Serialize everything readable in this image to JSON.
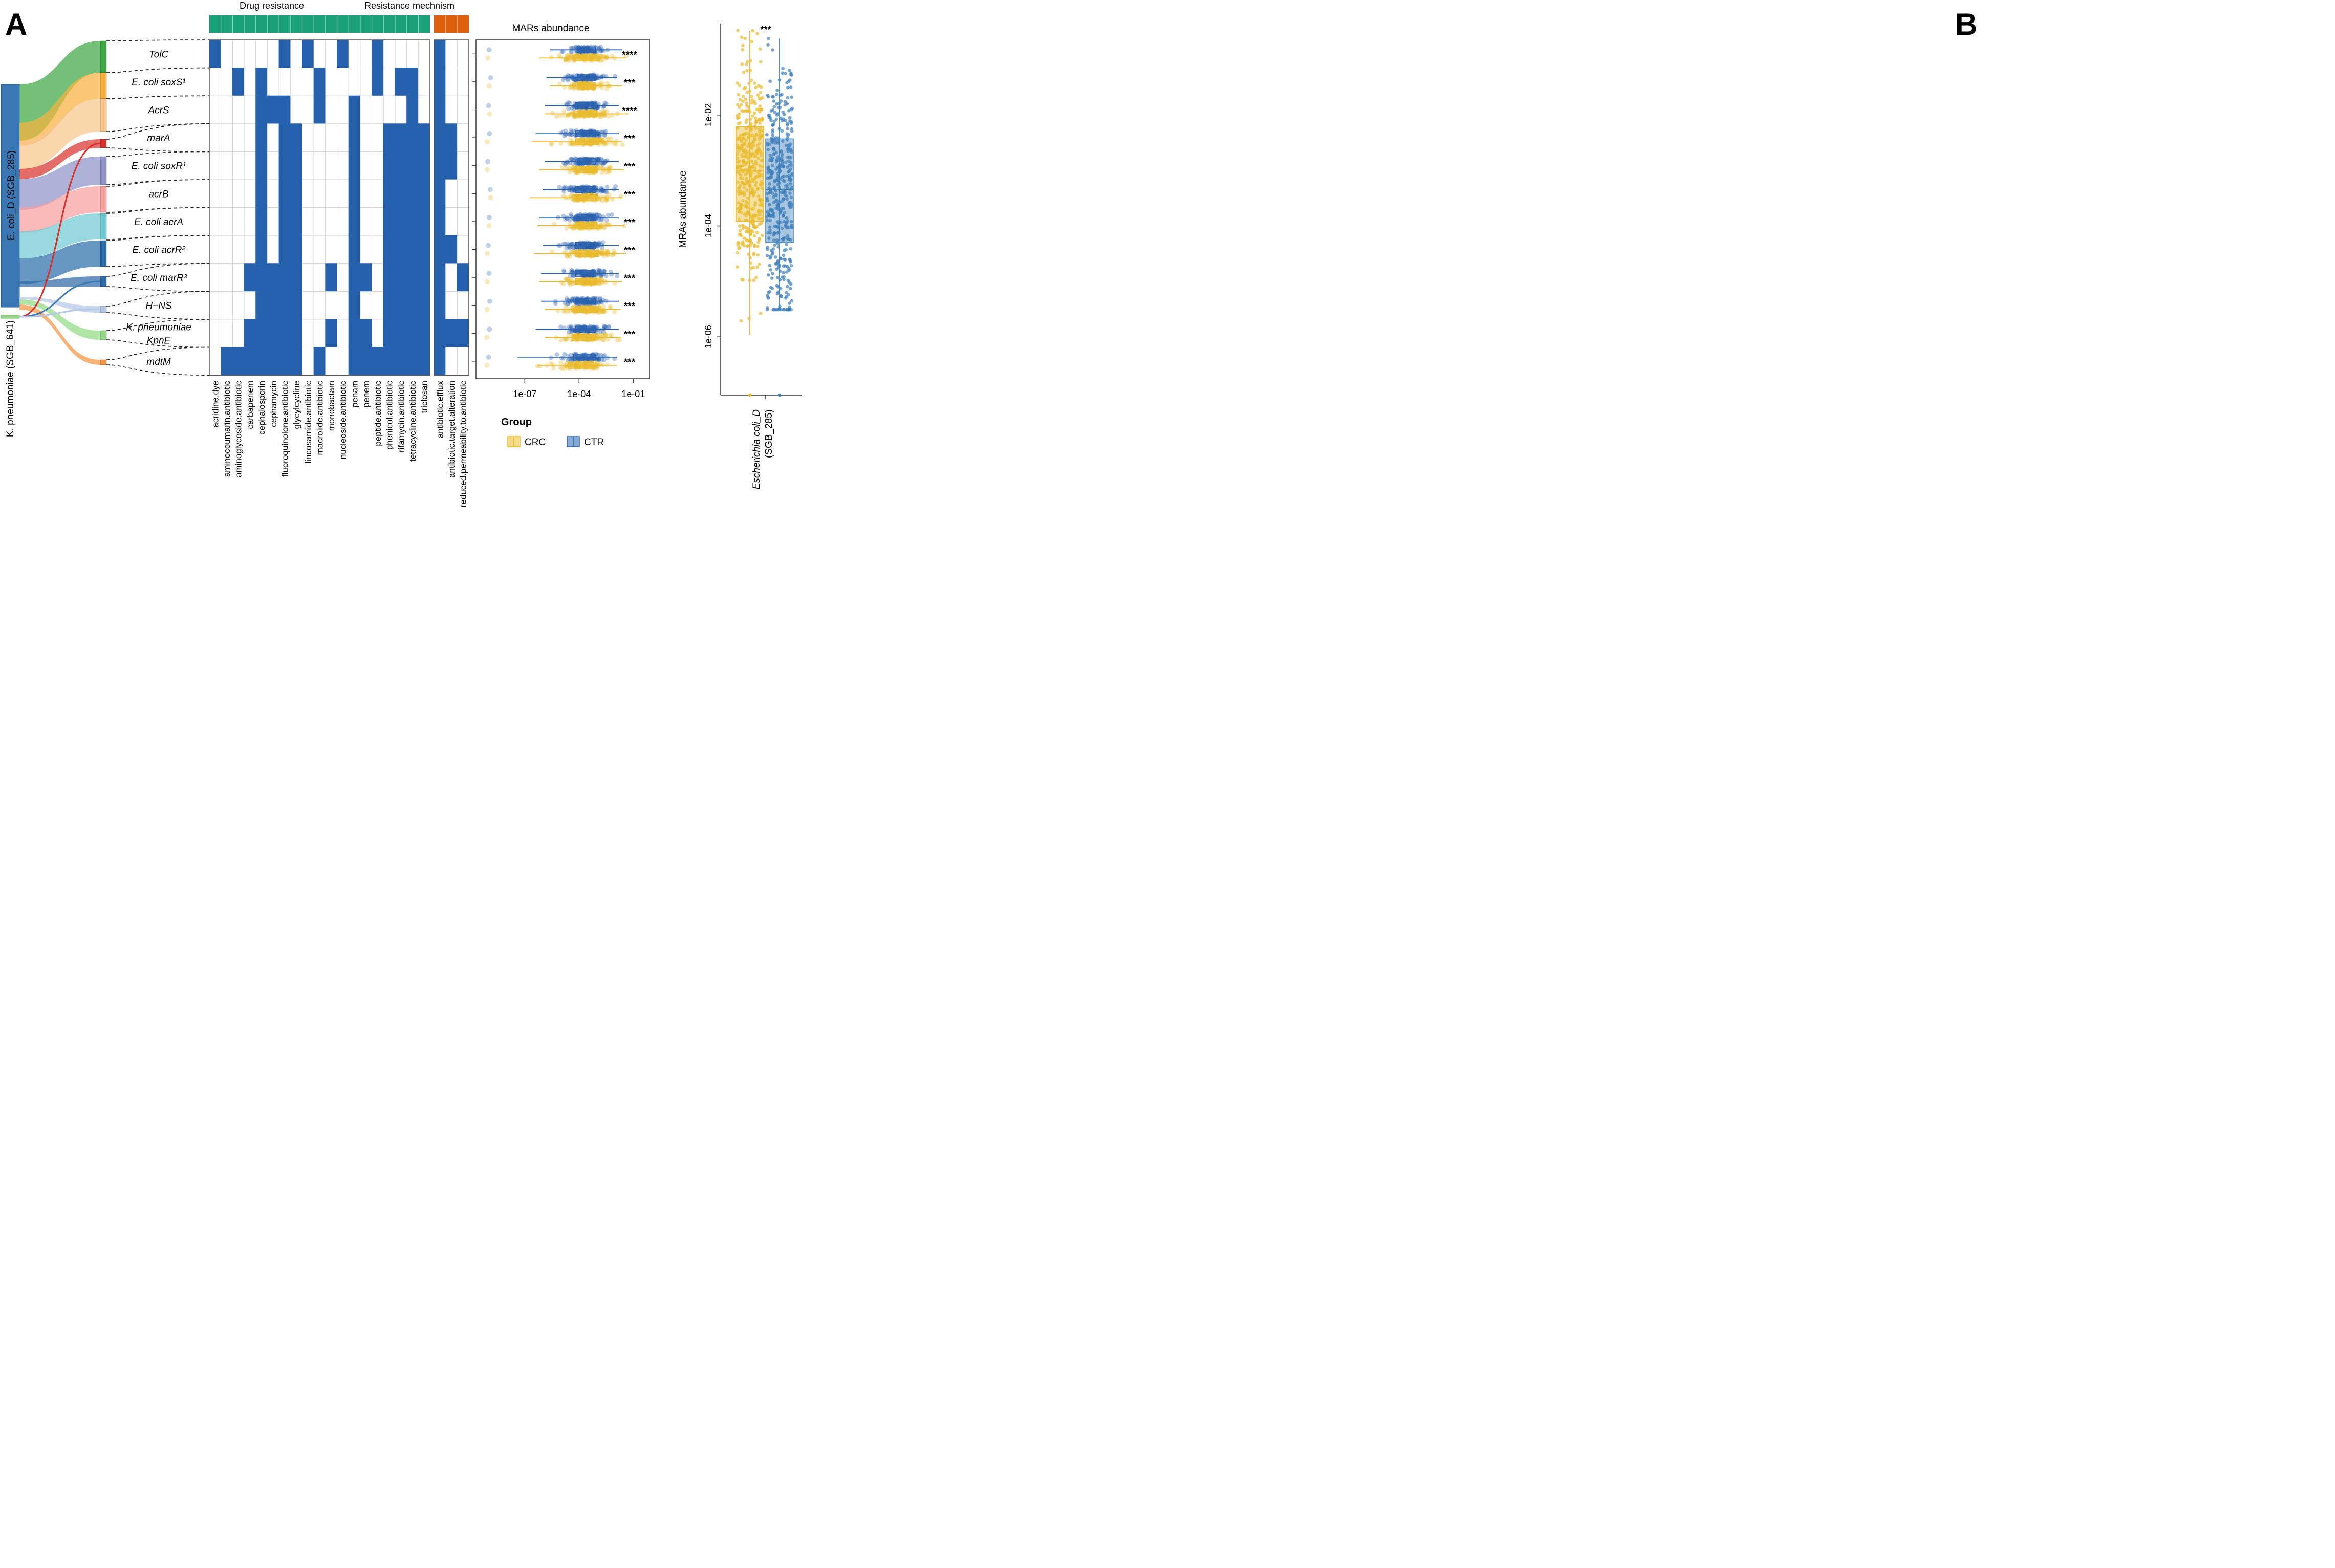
{
  "panel_labels": {
    "a": "A",
    "b": "B"
  },
  "colors": {
    "heat_fill": "#2560AC",
    "drug_bar": "#1AA179",
    "mech_bar": "#DE5F0C",
    "crc": "#E9BA2C",
    "ctr": "#2A62AE",
    "ctr_b": "#3F7FBA"
  },
  "species": {
    "ecoli": "E. coli_D (SGB_285)",
    "kpneu": "K. pneumoniae (SGB_641)"
  },
  "header": {
    "drug": "Drug resistance",
    "mech": "Resistance mechnism"
  },
  "genes": [
    {
      "label": "TolC",
      "color": "#3EA844"
    },
    {
      "label": "E. coli soxS¹",
      "color": "#F7B23E"
    },
    {
      "label": "AcrS",
      "color": "#F8C68D"
    },
    {
      "label": "marA",
      "color": "#D8322E"
    },
    {
      "label": "E. coli soxR¹",
      "color": "#8F93C8"
    },
    {
      "label": "acrB",
      "color": "#F6A0A0"
    },
    {
      "label": "E. coli acrA",
      "color": "#6FCBD2"
    },
    {
      "label": "E. coli acrR²",
      "color": "#2C6DAB"
    },
    {
      "label": "E. coli marR³",
      "color": "#2F6BAA"
    },
    {
      "label": "H−NS",
      "color": "#B3C8E8"
    },
    {
      "label": "K. pneumoniae KpnE",
      "color": "#93D985"
    },
    {
      "label": "mdtM",
      "color": "#F49542"
    }
  ],
  "drug_classes": [
    "acridine.dye",
    "aminocoumarin.antibiotic",
    "aminoglycoside.antibiotic",
    "carbapenem",
    "cephalosporin",
    "cephamycin",
    "fluoroquinolone.antibiotic",
    "glycylcycline",
    "lincosamide.antibiotic",
    "macrolide.antibiotic",
    "monobactam",
    "nucleoside.antibiotic",
    "penam",
    "penem",
    "peptide.antibiotic",
    "phenicol.antibiotic",
    "rifamycin.antibiotic",
    "tetracycline.antibiotic",
    "triclosan"
  ],
  "mechanisms": [
    "antibiotic.efflux",
    "antibiotic.target.alteration",
    "reduced.permeability.to.antibiotic"
  ],
  "drug_matrix": [
    [
      1,
      0,
      0,
      0,
      0,
      0,
      1,
      0,
      1,
      0,
      0,
      1,
      0,
      0,
      1,
      0,
      0,
      0,
      0
    ],
    [
      0,
      0,
      1,
      0,
      1,
      0,
      0,
      0,
      0,
      1,
      0,
      0,
      0,
      0,
      1,
      0,
      1,
      1,
      0
    ],
    [
      0,
      0,
      0,
      0,
      1,
      1,
      1,
      0,
      0,
      1,
      0,
      0,
      1,
      0,
      0,
      0,
      0,
      1,
      0
    ],
    [
      0,
      0,
      0,
      0,
      1,
      0,
      1,
      1,
      0,
      0,
      0,
      0,
      1,
      0,
      0,
      1,
      1,
      1,
      1
    ],
    [
      0,
      0,
      0,
      0,
      1,
      0,
      1,
      1,
      0,
      0,
      0,
      0,
      1,
      0,
      0,
      1,
      1,
      1,
      1
    ],
    [
      0,
      0,
      0,
      0,
      1,
      0,
      1,
      1,
      0,
      0,
      0,
      0,
      1,
      0,
      0,
      1,
      1,
      1,
      1
    ],
    [
      0,
      0,
      0,
      0,
      1,
      0,
      1,
      1,
      0,
      0,
      0,
      0,
      1,
      0,
      0,
      1,
      1,
      1,
      1
    ],
    [
      0,
      0,
      0,
      0,
      1,
      0,
      1,
      1,
      0,
      0,
      0,
      0,
      1,
      0,
      0,
      1,
      1,
      1,
      1
    ],
    [
      0,
      0,
      0,
      1,
      1,
      1,
      1,
      1,
      0,
      0,
      1,
      0,
      1,
      1,
      0,
      1,
      1,
      1,
      1
    ],
    [
      0,
      0,
      0,
      0,
      1,
      1,
      1,
      1,
      0,
      0,
      0,
      0,
      1,
      0,
      0,
      1,
      1,
      1,
      1
    ],
    [
      0,
      0,
      0,
      1,
      1,
      1,
      1,
      1,
      0,
      0,
      1,
      0,
      1,
      1,
      0,
      1,
      1,
      1,
      1
    ],
    [
      0,
      1,
      1,
      1,
      1,
      1,
      1,
      1,
      0,
      1,
      0,
      0,
      1,
      1,
      1,
      1,
      1,
      1,
      1
    ]
  ],
  "mech_matrix": [
    [
      1,
      0,
      0
    ],
    [
      1,
      0,
      0
    ],
    [
      1,
      0,
      0
    ],
    [
      1,
      1,
      0
    ],
    [
      1,
      1,
      0
    ],
    [
      1,
      0,
      0
    ],
    [
      1,
      0,
      0
    ],
    [
      1,
      1,
      0
    ],
    [
      1,
      0,
      1
    ],
    [
      1,
      0,
      0
    ],
    [
      1,
      1,
      1
    ],
    [
      1,
      0,
      0
    ]
  ],
  "chart_data": [
    {
      "type": "boxplot",
      "title": "MARs abundance",
      "xscale": "log10",
      "xlim_log10": [
        -9.7,
        -0.1
      ],
      "ticks": [
        -7,
        -4,
        -1
      ],
      "tick_labels": [
        "1e-07",
        "1e-04",
        "1e-01"
      ],
      "legend_title": "Group",
      "groups": [
        "CRC",
        "CTR"
      ],
      "significance": [
        "****",
        "***",
        "****",
        "***",
        "***",
        "***",
        "***",
        "***",
        "***",
        "***",
        "***",
        "***"
      ],
      "crc": [
        {
          "q1": -4.3,
          "med": -3.8,
          "q3": -2.9,
          "wlo": -6.2,
          "whi": -1.4
        },
        {
          "q1": -4.1,
          "med": -3.7,
          "q3": -3.1,
          "wlo": -5.6,
          "whi": -1.6
        },
        {
          "q1": -4.3,
          "med": -3.6,
          "q3": -3.0,
          "wlo": -5.9,
          "whi": -1.3
        },
        {
          "q1": -4.2,
          "med": -3.7,
          "q3": -2.9,
          "wlo": -6.6,
          "whi": -1.6
        },
        {
          "q1": -4.2,
          "med": -3.6,
          "q3": -3.0,
          "wlo": -6.2,
          "whi": -1.5
        },
        {
          "q1": -4.2,
          "med": -3.6,
          "q3": -3.0,
          "wlo": -6.7,
          "whi": -1.6
        },
        {
          "q1": -4.2,
          "med": -3.6,
          "q3": -3.0,
          "wlo": -6.3,
          "whi": -1.5
        },
        {
          "q1": -4.2,
          "med": -3.6,
          "q3": -2.9,
          "wlo": -6.5,
          "whi": -1.4
        },
        {
          "q1": -4.2,
          "med": -3.6,
          "q3": -3.0,
          "wlo": -6.2,
          "whi": -1.6
        },
        {
          "q1": -4.2,
          "med": -3.6,
          "q3": -3.0,
          "wlo": -5.9,
          "whi": -1.7
        },
        {
          "q1": -4.4,
          "med": -3.8,
          "q3": -3.1,
          "wlo": -5.9,
          "whi": -1.7
        },
        {
          "q1": -4.6,
          "med": -3.9,
          "q3": -3.2,
          "wlo": -6.3,
          "whi": -1.9
        }
      ],
      "ctr": [
        {
          "q1": -4.1,
          "med": -3.6,
          "q3": -3.1,
          "wlo": -5.6,
          "whi": -1.6
        },
        {
          "q1": -4.1,
          "med": -3.6,
          "q3": -3.1,
          "wlo": -5.8,
          "whi": -1.9
        },
        {
          "q1": -4.2,
          "med": -3.6,
          "q3": -3.1,
          "wlo": -5.9,
          "whi": -1.8
        },
        {
          "q1": -4.2,
          "med": -3.6,
          "q3": -3.1,
          "wlo": -6.4,
          "whi": -1.8
        },
        {
          "q1": -4.1,
          "med": -3.6,
          "q3": -3.1,
          "wlo": -5.9,
          "whi": -1.8
        },
        {
          "q1": -4.2,
          "med": -3.6,
          "q3": -3.1,
          "wlo": -6.0,
          "whi": -1.8
        },
        {
          "q1": -4.1,
          "med": -3.6,
          "q3": -3.1,
          "wlo": -6.2,
          "whi": -1.8
        },
        {
          "q1": -4.2,
          "med": -3.6,
          "q3": -3.1,
          "wlo": -6.0,
          "whi": -1.8
        },
        {
          "q1": -4.2,
          "med": -3.6,
          "q3": -3.1,
          "wlo": -6.1,
          "whi": -1.8
        },
        {
          "q1": -4.2,
          "med": -3.6,
          "q3": -3.1,
          "wlo": -6.1,
          "whi": -1.8
        },
        {
          "q1": -4.2,
          "med": -3.6,
          "q3": -3.1,
          "wlo": -6.4,
          "whi": -1.8
        },
        {
          "q1": -4.3,
          "med": -3.7,
          "q3": -3.1,
          "wlo": -7.4,
          "whi": -1.9
        }
      ],
      "outliers": {
        "crc": [
          -9.0,
          -9.0,
          -9.0,
          -8.9
        ],
        "ctr": [
          -9.0,
          -9.0,
          -9.0,
          -8.9
        ]
      }
    },
    {
      "type": "boxplot",
      "ylabel": "MRAs abundance",
      "yscale": "log10",
      "ylim_log10": [
        -7.05,
        -0.35
      ],
      "ticks": [
        -6,
        -4,
        -2
      ],
      "tick_labels": [
        "1e-06",
        "1e-04",
        "1e-02"
      ],
      "significance": "***",
      "category": "Escherichia coli_D (SGB_285)",
      "crc": {
        "q1": -3.92,
        "med": -3.01,
        "q3": -2.21,
        "wlo": -5.97,
        "whi": -0.48
      },
      "ctr": {
        "q1": -4.3,
        "med": -3.34,
        "q3": -2.43,
        "wlo": -5.51,
        "whi": -0.62
      },
      "outliers": {
        "crc": [
          -7.05
        ],
        "ctr": [
          -5.49,
          -7.05
        ]
      }
    }
  ]
}
